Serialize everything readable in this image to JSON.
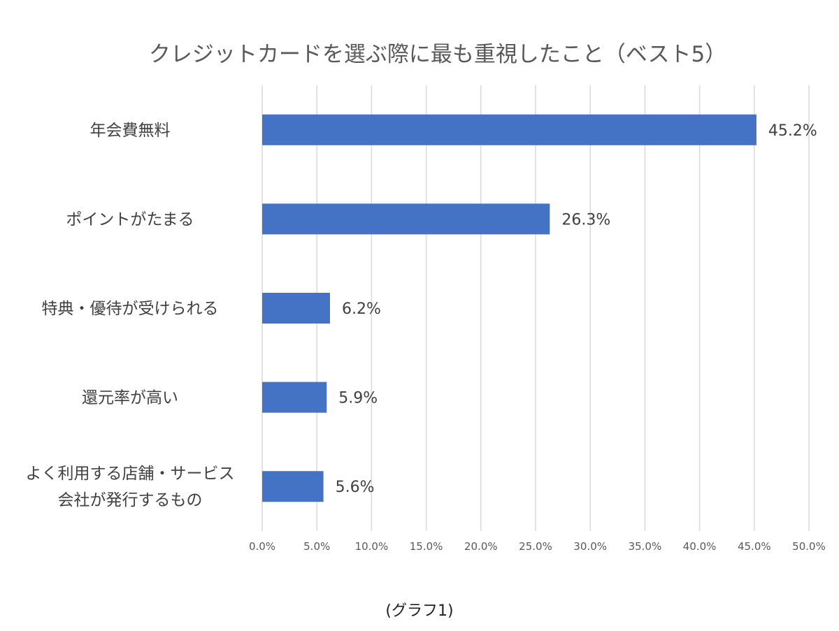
{
  "chart_data": {
    "type": "bar",
    "orientation": "horizontal",
    "title": "クレジットカードを選ぶ際に最も重視したこと（ベスト5）",
    "categories": [
      [
        "年会費無料"
      ],
      [
        "ポイントがたまる"
      ],
      [
        "特典・優待が受けられる"
      ],
      [
        "還元率が高い"
      ],
      [
        "よく利用する店舗・サービス",
        "会社が発行するもの"
      ]
    ],
    "values": [
      45.2,
      26.3,
      6.2,
      5.9,
      5.6
    ],
    "value_labels": [
      "45.2%",
      "26.3%",
      "6.2%",
      "5.9%",
      "5.6%"
    ],
    "xlim": [
      0,
      50
    ],
    "xticks": [
      "0.0%",
      "5.0%",
      "10.0%",
      "15.0%",
      "20.0%",
      "25.0%",
      "30.0%",
      "35.0%",
      "40.0%",
      "45.0%",
      "50.0%"
    ],
    "grid": true,
    "bar_color": "#4472c4",
    "xlabel": "",
    "ylabel": ""
  },
  "caption": "(グラフ1)"
}
